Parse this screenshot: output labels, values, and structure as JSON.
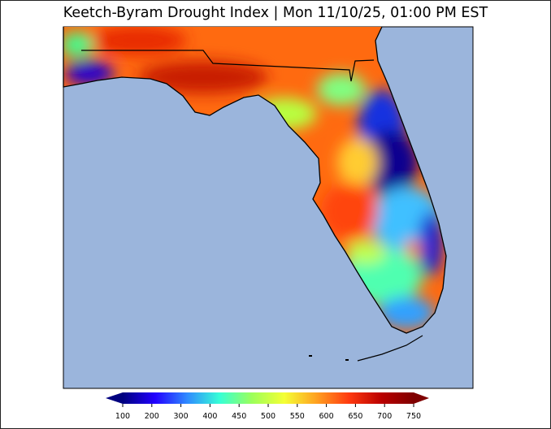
{
  "title": "Keetch-Byram Drought Index | Mon 11/10/25, 01:00 PM EST",
  "colors": {
    "ocean": "#9bb5dc",
    "colormap": [
      "#00007f",
      "#2200ff",
      "#2f8bff",
      "#36ffd6",
      "#9cff5a",
      "#f4ff35",
      "#ffa020",
      "#ff3a10",
      "#ba0000",
      "#7f0000"
    ]
  },
  "colorbar": {
    "ticks": [
      "100",
      "200",
      "300",
      "400",
      "450",
      "500",
      "550",
      "600",
      "650",
      "700",
      "750"
    ],
    "extend": "both"
  }
}
